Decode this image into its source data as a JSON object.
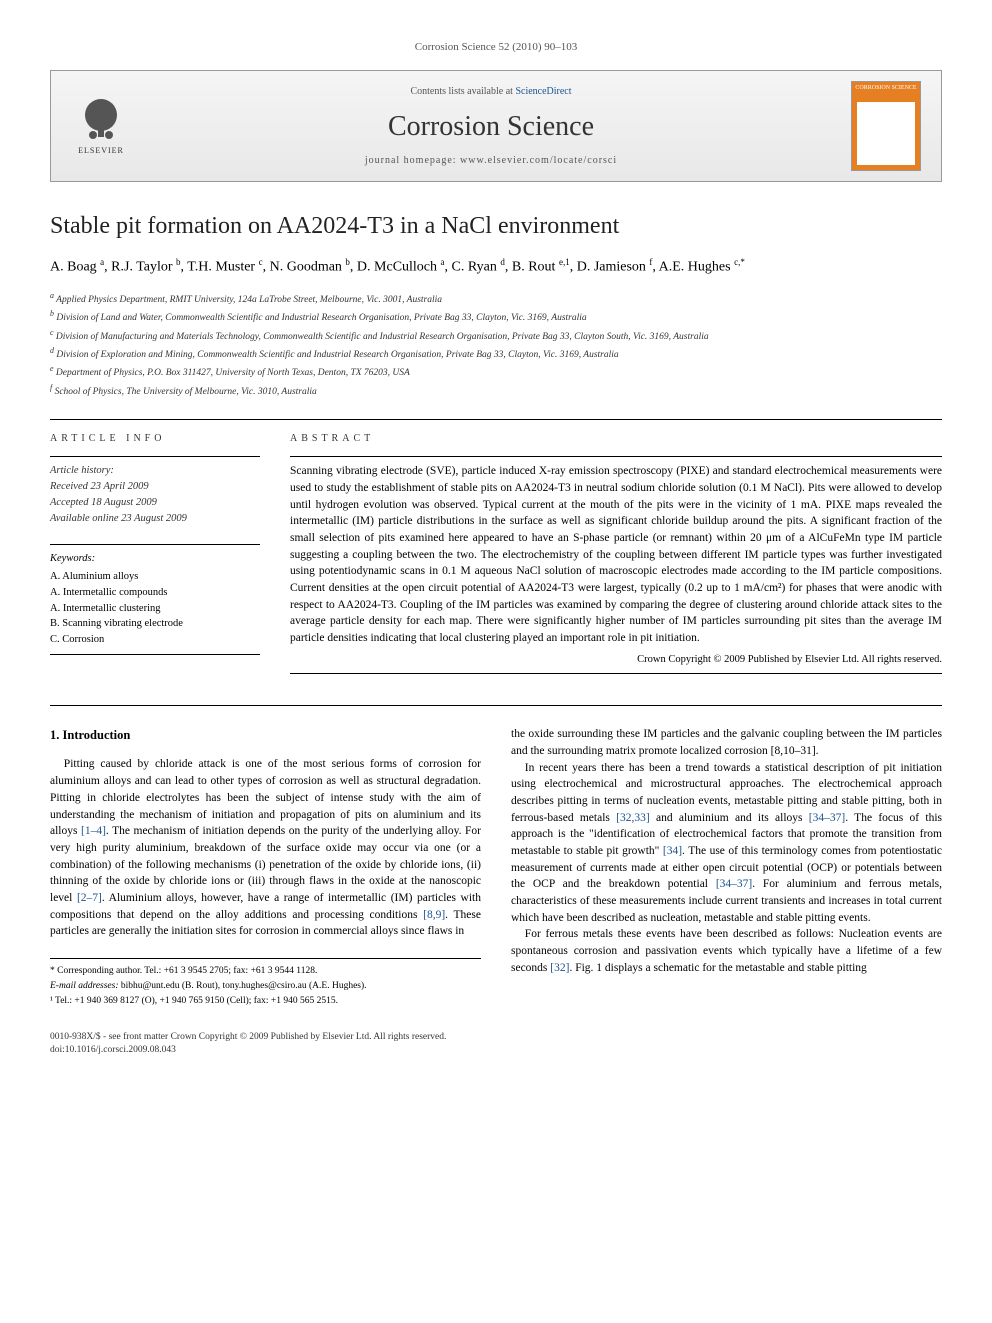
{
  "header": {
    "citation": "Corrosion Science 52 (2010) 90–103"
  },
  "banner": {
    "publisher": "ELSEVIER",
    "contents_prefix": "Contents lists available at ",
    "contents_link": "ScienceDirect",
    "journal_name": "Corrosion Science",
    "homepage_prefix": "journal homepage: ",
    "homepage_url": "www.elsevier.com/locate/corsci",
    "cover_label": "CORROSION SCIENCE",
    "cover_color": "#e67e22"
  },
  "title": "Stable pit formation on AA2024-T3 in a NaCl environment",
  "authors_html": "A. Boag <sup>a</sup>, R.J. Taylor <sup>b</sup>, T.H. Muster <sup>c</sup>, N. Goodman <sup>b</sup>, D. McCulloch <sup>a</sup>, C. Ryan <sup>d</sup>, B. Rout <sup>e,1</sup>, D. Jamieson <sup>f</sup>, A.E. Hughes <sup>c,*</sup>",
  "affiliations": [
    "a Applied Physics Department, RMIT University, 124a LaTrobe Street, Melbourne, Vic. 3001, Australia",
    "b Division of Land and Water, Commonwealth Scientific and Industrial Research Organisation, Private Bag 33, Clayton, Vic. 3169, Australia",
    "c Division of Manufacturing and Materials Technology, Commonwealth Scientific and Industrial Research Organisation, Private Bag 33, Clayton South, Vic. 3169, Australia",
    "d Division of Exploration and Mining, Commonwealth Scientific and Industrial Research Organisation, Private Bag 33, Clayton, Vic. 3169, Australia",
    "e Department of Physics, P.O. Box 311427, University of North Texas, Denton, TX 76203, USA",
    "f School of Physics, The University of Melbourne, Vic. 3010, Australia"
  ],
  "article_info": {
    "heading": "ARTICLE INFO",
    "history_label": "Article history:",
    "history": [
      "Received 23 April 2009",
      "Accepted 18 August 2009",
      "Available online 23 August 2009"
    ],
    "keywords_label": "Keywords:",
    "keywords": [
      "A. Aluminium alloys",
      "A. Intermetallic compounds",
      "A. Intermetallic clustering",
      "B. Scanning vibrating electrode",
      "C. Corrosion"
    ]
  },
  "abstract": {
    "heading": "ABSTRACT",
    "text": "Scanning vibrating electrode (SVE), particle induced X-ray emission spectroscopy (PIXE) and standard electrochemical measurements were used to study the establishment of stable pits on AA2024-T3 in neutral sodium chloride solution (0.1 M NaCl). Pits were allowed to develop until hydrogen evolution was observed. Typical current at the mouth of the pits were in the vicinity of 1 mA. PIXE maps revealed the intermetallic (IM) particle distributions in the surface as well as significant chloride buildup around the pits. A significant fraction of the small selection of pits examined here appeared to have an S-phase particle (or remnant) within 20 μm of a AlCuFeMn type IM particle suggesting a coupling between the two. The electrochemistry of the coupling between different IM particle types was further investigated using potentiodynamic scans in 0.1 M aqueous NaCl solution of macroscopic electrodes made according to the IM particle compositions. Current densities at the open circuit potential of AA2024-T3 were largest, typically (0.2 up to 1 mA/cm²) for phases that were anodic with respect to AA2024-T3. Coupling of the IM particles was examined by comparing the degree of clustering around chloride attack sites to the average particle density for each map. There were significantly higher number of IM particles surrounding pit sites than the average IM particle densities indicating that local clustering played an important role in pit initiation.",
    "copyright": "Crown Copyright © 2009 Published by Elsevier Ltd. All rights reserved."
  },
  "body": {
    "heading": "1. Introduction",
    "col1": [
      "Pitting caused by chloride attack is one of the most serious forms of corrosion for aluminium alloys and can lead to other types of corrosion as well as structural degradation. Pitting in chloride electrolytes has been the subject of intense study with the aim of understanding the mechanism of initiation and propagation of pits on aluminium and its alloys [1–4]. The mechanism of initiation depends on the purity of the underlying alloy. For very high purity aluminium, breakdown of the surface oxide may occur via one (or a combination) of the following mechanisms (i) penetration of the oxide by chloride ions, (ii) thinning of the oxide by chloride ions or (iii) through flaws in the oxide at the nanoscopic level [2–7]. Aluminium alloys, however, have a range of intermetallic (IM) particles with compositions that depend on the alloy additions and processing conditions [8,9]. These particles are generally the initiation sites for corrosion in commercial alloys since flaws in"
    ],
    "col2": [
      "the oxide surrounding these IM particles and the galvanic coupling between the IM particles and the surrounding matrix promote localized corrosion [8,10–31].",
      "In recent years there has been a trend towards a statistical description of pit initiation using electrochemical and microstructural approaches. The electrochemical approach describes pitting in terms of nucleation events, metastable pitting and stable pitting, both in ferrous-based metals [32,33] and aluminium and its alloys [34–37]. The focus of this approach is the \"identification of electrochemical factors that promote the transition from metastable to stable pit growth\" [34]. The use of this terminology comes from potentiostatic measurement of currents made at either open circuit potential (OCP) or potentials between the OCP and the breakdown potential [34–37]. For aluminium and ferrous metals, characteristics of these measurements include current transients and increases in total current which have been described as nucleation, metastable and stable pitting events.",
      "For ferrous metals these events have been described as follows: Nucleation events are spontaneous corrosion and passivation events which typically have a lifetime of a few seconds [32]. Fig. 1 displays a schematic for the metastable and stable pitting"
    ]
  },
  "footnotes": {
    "corresponding": "* Corresponding author. Tel.: +61 3 9545 2705; fax: +61 3 9544 1128.",
    "emails_label": "E-mail addresses:",
    "emails": "bibhu@unt.edu (B. Rout), tony.hughes@csiro.au (A.E. Hughes).",
    "note1": "¹ Tel.: +1 940 369 8127 (O), +1 940 765 9150 (Cell); fax: +1 940 565 2515."
  },
  "footer": {
    "issn": "0010-938X/$ - see front matter Crown Copyright © 2009 Published by Elsevier Ltd. All rights reserved.",
    "doi": "doi:10.1016/j.corsci.2009.08.043"
  },
  "colors": {
    "link": "#1a5490",
    "text": "#000000",
    "muted": "#555555",
    "cover": "#e67e22"
  }
}
